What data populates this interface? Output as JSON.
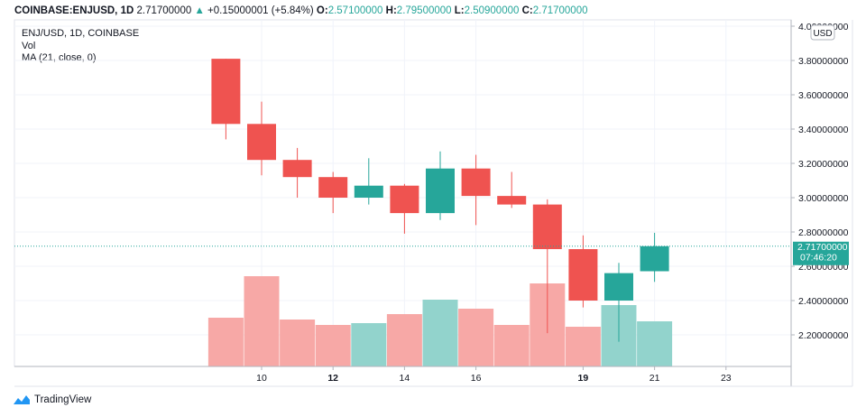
{
  "header": {
    "symbol": "COINBASE:ENJUSD, 1D",
    "last": "2.71700000",
    "change": "+0.15000001 (+5.84%)",
    "o_label": "O:",
    "o": "2.57100000",
    "h_label": "H:",
    "h": "2.79500000",
    "l_label": "L:",
    "l": "2.50900000",
    "c_label": "C:",
    "c": "2.71700000"
  },
  "legend": {
    "title": "ENJ/USD, 1D, COINBASE",
    "vol": "Vol",
    "ma": "MA (21, close, 0)"
  },
  "price_axis": {
    "currency": "USD",
    "last_price_label": "2.71700000",
    "countdown": "07:46:20"
  },
  "footer": {
    "brand": "TradingView"
  },
  "colors": {
    "up": "#26a69a",
    "down": "#ef5350",
    "vol_up": "#92d3cc",
    "vol_down": "#f7a8a6",
    "grid": "#f0f3fa",
    "axis": "#b2b5be"
  },
  "chart_data": {
    "type": "candlestick",
    "x_ticks": [
      "10",
      "12",
      "14",
      "16",
      "19",
      "21",
      "23"
    ],
    "x_tick_days": [
      10,
      12,
      14,
      16,
      19,
      21,
      23
    ],
    "y_ticks": [
      "4.00000000",
      "3.80000000",
      "3.60000000",
      "3.40000000",
      "3.20000000",
      "3.00000000",
      "2.80000000",
      "2.60000000",
      "2.40000000",
      "2.20000000"
    ],
    "ylim": [
      2.0,
      4.0
    ],
    "candles": [
      {
        "day": 9,
        "open": 3.81,
        "high": 3.81,
        "low": 3.34,
        "close": 3.43,
        "volume": 0.27
      },
      {
        "day": 10,
        "open": 3.43,
        "high": 3.56,
        "low": 3.13,
        "close": 3.22,
        "volume": 0.5
      },
      {
        "day": 11,
        "open": 3.22,
        "high": 3.29,
        "low": 3.0,
        "close": 3.12,
        "volume": 0.26
      },
      {
        "day": 12,
        "open": 3.12,
        "high": 3.15,
        "low": 2.91,
        "close": 3.0,
        "volume": 0.23
      },
      {
        "day": 13,
        "open": 3.0,
        "high": 3.23,
        "low": 2.96,
        "close": 3.07,
        "volume": 0.24
      },
      {
        "day": 14,
        "open": 3.07,
        "high": 3.08,
        "low": 2.79,
        "close": 2.91,
        "volume": 0.29
      },
      {
        "day": 15,
        "open": 2.91,
        "high": 3.27,
        "low": 2.87,
        "close": 3.17,
        "volume": 0.37
      },
      {
        "day": 16,
        "open": 3.17,
        "high": 3.25,
        "low": 2.84,
        "close": 3.01,
        "volume": 0.32
      },
      {
        "day": 17,
        "open": 3.01,
        "high": 3.15,
        "low": 2.94,
        "close": 2.96,
        "volume": 0.23
      },
      {
        "day": 18,
        "open": 2.96,
        "high": 2.99,
        "low": 2.21,
        "close": 2.7,
        "volume": 0.46
      },
      {
        "day": 19,
        "open": 2.7,
        "high": 2.78,
        "low": 2.36,
        "close": 2.4,
        "volume": 0.22
      },
      {
        "day": 20,
        "open": 2.4,
        "high": 2.62,
        "low": 2.16,
        "close": 2.56,
        "volume": 0.34
      },
      {
        "day": 21,
        "open": 2.571,
        "high": 2.795,
        "low": 2.509,
        "close": 2.717,
        "volume": 0.25
      }
    ],
    "last_price": 2.717
  }
}
